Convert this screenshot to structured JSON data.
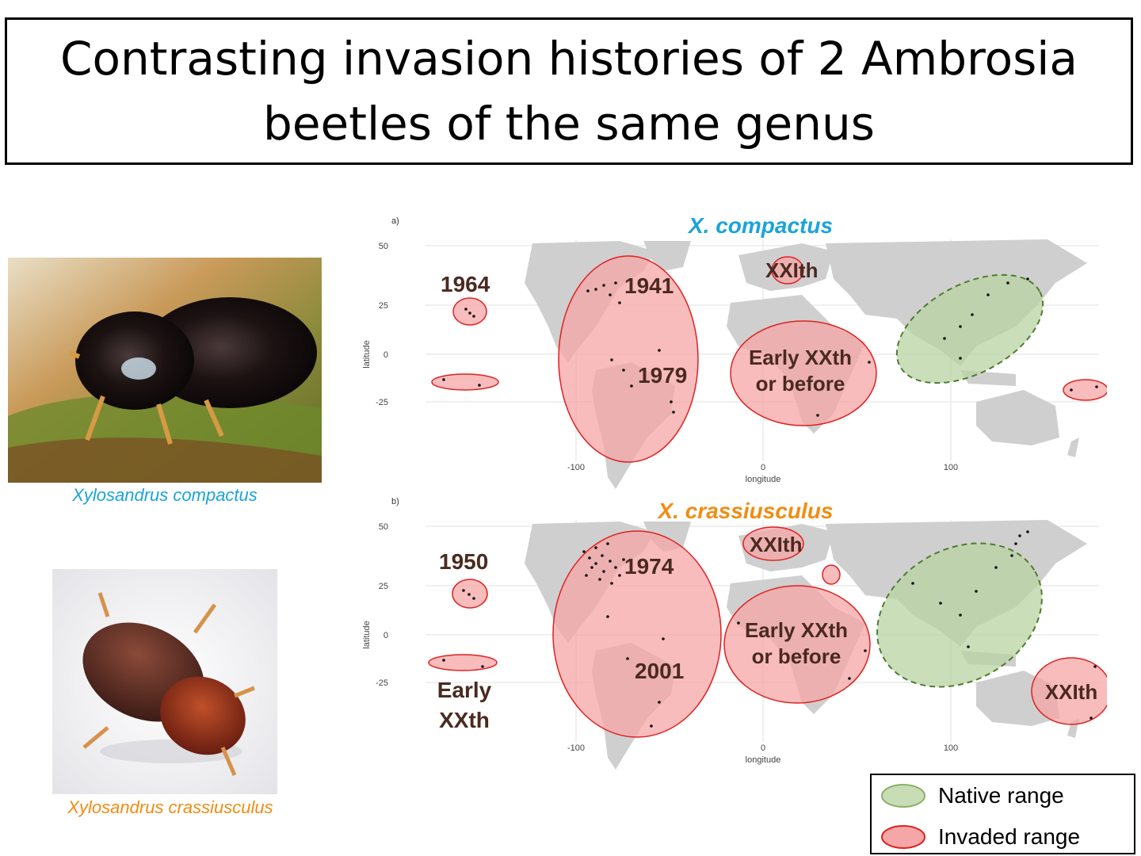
{
  "title": "Contrasting invasion histories of 2 Ambrosia beetles of the same genus",
  "photos": {
    "compactus_caption": "Xylosandrus compactus",
    "crassiusculus_caption": "Xylosandrus crassiusculus"
  },
  "colors": {
    "compactus_accent": "#1ba3dc",
    "crassiusculus_accent": "#f28c12",
    "native_fill": "#b9d3a3",
    "native_stroke": "#4f7d2d",
    "invaded_fill": "#f5a6a6",
    "invaded_stroke": "#e02020",
    "label_text": "#4a2a20",
    "land": "#cfcfcf"
  },
  "maps": [
    {
      "panel_tag": "a)",
      "species": "X. compactus",
      "axis": {
        "ylabel": "latitude",
        "xlabel": "longitude",
        "yticks": [
          "50",
          "25",
          "0",
          "-25"
        ],
        "xticks": [
          "-100",
          "0",
          "100"
        ]
      },
      "labels": [
        "1964",
        "1941",
        "1979",
        "XXIth",
        "Early XXth",
        "or before"
      ]
    },
    {
      "panel_tag": "b)",
      "species": "X. crassiusculus",
      "axis": {
        "ylabel": "latitude",
        "xlabel": "longitude",
        "yticks": [
          "50",
          "25",
          "0",
          "-25"
        ],
        "xticks": [
          "-100",
          "0",
          "100"
        ]
      },
      "labels": [
        "1950",
        "1974",
        "2001",
        "XXIth",
        "Early XXth",
        "or before",
        "Early",
        "XXth",
        "XXIth"
      ]
    }
  ],
  "legend": {
    "native": "Native range",
    "invaded": "Invaded range"
  }
}
